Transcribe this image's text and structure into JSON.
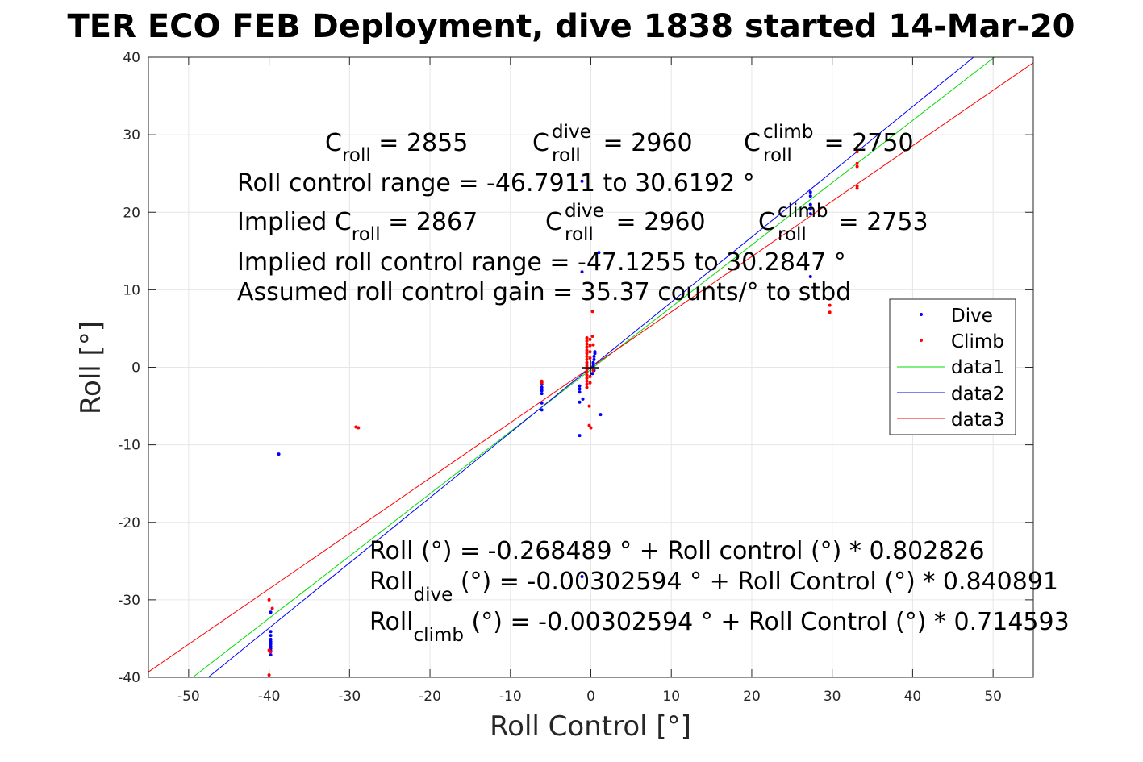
{
  "chart_data": {
    "type": "scatter",
    "title": "TER ECO FEB Deployment, dive 1838 started 14-Mar-20",
    "xlabel": "Roll Control [°]",
    "ylabel": "Roll [°]",
    "xlim": [
      -55,
      55
    ],
    "ylim": [
      -40,
      40
    ],
    "xticks": [
      -50,
      -40,
      -30,
      -20,
      -10,
      0,
      10,
      20,
      30,
      40,
      50
    ],
    "yticks": [
      -40,
      -30,
      -20,
      -10,
      0,
      10,
      20,
      30,
      40
    ],
    "grid": true,
    "legend_position": "right",
    "series": [
      {
        "name": "Dive",
        "kind": "points",
        "color": "#0000ff",
        "points": [
          [
            -39.8,
            -31.6
          ],
          [
            -39.8,
            -34.1
          ],
          [
            -39.8,
            -34.6
          ],
          [
            -39.8,
            -35.1
          ],
          [
            -39.8,
            -35.4
          ],
          [
            -39.8,
            -35.7
          ],
          [
            -39.8,
            -36.0
          ],
          [
            -39.8,
            -36.3
          ],
          [
            -39.8,
            -36.6
          ],
          [
            -39.8,
            -37.1
          ],
          [
            -38.8,
            -11.2
          ],
          [
            -6.1,
            -1.9
          ],
          [
            -6.1,
            -2.2
          ],
          [
            -6.1,
            -2.6
          ],
          [
            -6.1,
            -3.0
          ],
          [
            -6.1,
            -3.4
          ],
          [
            -6.1,
            -4.6
          ],
          [
            -6.1,
            -5.5
          ],
          [
            -1.4,
            -2.4
          ],
          [
            -1.4,
            -2.8
          ],
          [
            -1.4,
            -3.2
          ],
          [
            -1.4,
            -4.5
          ],
          [
            -1.0,
            -4.1
          ],
          [
            -1.4,
            -8.8
          ],
          [
            -1.1,
            24.0
          ],
          [
            -1.1,
            12.3
          ],
          [
            -1.1,
            -27.0
          ],
          [
            0.3,
            0.2
          ],
          [
            0.3,
            0.6
          ],
          [
            0.4,
            1.0
          ],
          [
            0.4,
            1.4
          ],
          [
            0.5,
            1.8
          ],
          [
            0.5,
            2.0
          ],
          [
            0.4,
            -0.4
          ],
          [
            0.2,
            -0.8
          ],
          [
            1.0,
            14.8
          ],
          [
            1.2,
            -6.1
          ],
          [
            27.3,
            22.6
          ],
          [
            27.3,
            22.1
          ],
          [
            27.3,
            21.0
          ],
          [
            27.3,
            20.4
          ],
          [
            27.3,
            19.8
          ],
          [
            27.3,
            11.7
          ]
        ]
      },
      {
        "name": "Climb",
        "kind": "points",
        "color": "#ff0000",
        "points": [
          [
            -40.0,
            -30.0
          ],
          [
            -39.6,
            -31.1
          ],
          [
            -40.0,
            -36.5
          ],
          [
            -39.8,
            -36.7
          ],
          [
            -40.0,
            -39.7
          ],
          [
            -29.2,
            -7.7
          ],
          [
            -28.9,
            -7.8
          ],
          [
            -6.1,
            -1.8
          ],
          [
            -6.1,
            -2.0
          ],
          [
            -0.5,
            3.8
          ],
          [
            -0.5,
            3.4
          ],
          [
            -0.5,
            3.0
          ],
          [
            -0.5,
            2.6
          ],
          [
            -0.5,
            2.2
          ],
          [
            -0.5,
            1.8
          ],
          [
            -0.5,
            1.4
          ],
          [
            -0.5,
            1.0
          ],
          [
            -0.5,
            0.6
          ],
          [
            -0.5,
            0.2
          ],
          [
            -0.5,
            -0.2
          ],
          [
            -0.5,
            -0.6
          ],
          [
            -0.5,
            -1.0
          ],
          [
            -0.5,
            -1.4
          ],
          [
            -0.5,
            -1.8
          ],
          [
            -0.5,
            -2.2
          ],
          [
            -0.5,
            -2.6
          ],
          [
            -0.1,
            3.6
          ],
          [
            -0.1,
            2.8
          ],
          [
            -0.1,
            2.0
          ],
          [
            -0.1,
            1.2
          ],
          [
            -0.1,
            -1.2
          ],
          [
            -0.1,
            -2.0
          ],
          [
            0.2,
            7.2
          ],
          [
            0.2,
            4.0
          ],
          [
            0.3,
            2.9
          ],
          [
            0.3,
            -0.4
          ],
          [
            -0.2,
            -7.5
          ],
          [
            0.0,
            -7.8
          ],
          [
            -0.2,
            -5.0
          ],
          [
            29.7,
            8.0
          ],
          [
            29.7,
            7.1
          ],
          [
            33.1,
            27.8
          ],
          [
            33.1,
            26.3
          ],
          [
            33.1,
            25.9
          ],
          [
            33.1,
            23.4
          ],
          [
            33.1,
            23.1
          ]
        ]
      },
      {
        "name": "data1",
        "kind": "line",
        "color": "#00dd00",
        "intercept": -0.268489,
        "slope": 0.802826
      },
      {
        "name": "data2",
        "kind": "line",
        "color": "#0000ff",
        "intercept": -0.00302594,
        "slope": 0.840891
      },
      {
        "name": "data3",
        "kind": "line",
        "color": "#ff0000",
        "intercept": -0.00302594,
        "slope": 0.714593
      }
    ],
    "annotations": {
      "c_roll_base": "C",
      "c_roll_sub": "roll",
      "c_roll_value": " = 2855",
      "c_dive_base": "C",
      "c_dive_sup": "dive",
      "c_dive_sub": "roll",
      "c_dive_value": " = 2960",
      "c_climb_base": "C",
      "c_climb_sup": "climb",
      "c_climb_sub": "roll",
      "c_climb_value": " = 2750",
      "roll_range": "Roll control range = -46.7911 to 30.6192 °",
      "implied_prefix": "Implied C",
      "implied_sub": "roll",
      "implied_value": " = 2867",
      "implied_dive_base": "C",
      "implied_dive_sup": "dive",
      "implied_dive_sub": "roll",
      "implied_dive_value": " = 2960",
      "implied_climb_base": "C",
      "implied_climb_sup": "climb",
      "implied_climb_sub": "roll",
      "implied_climb_value": " = 2753",
      "implied_range": "Implied roll control range = -47.1255 to 30.2847 °",
      "gain": "Assumed roll control gain = 35.37 counts/° to stbd",
      "fit_all": "Roll (°) = -0.268489 ° + Roll control (°) * 0.802826",
      "fit_dive_base": "Roll",
      "fit_dive_sub": "dive",
      "fit_dive_rest": " (°) = -0.00302594 ° + Roll Control (°) * 0.840891",
      "fit_climb_base": "Roll",
      "fit_climb_sub": "climb",
      "fit_climb_rest": " (°) = -0.00302594 ° + Roll Control (°) * 0.714593"
    },
    "legend": [
      "Dive",
      "Climb",
      "data1",
      "data2",
      "data3"
    ]
  }
}
